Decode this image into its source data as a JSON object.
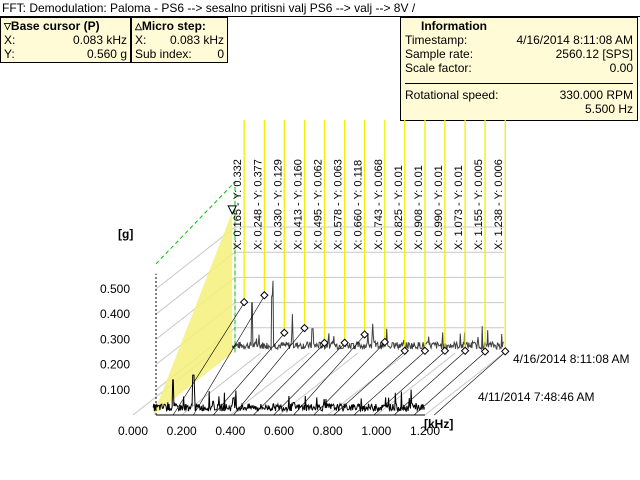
{
  "window": {
    "title": "FFT: Demodulation: Paloma - PS6 --> sesalno pritisni valj PS6 --> valj --> 8V  /"
  },
  "base_cursor": {
    "marker": "▽",
    "title": "Base cursor (P)",
    "x_label": "X:",
    "x_value": "0.083 kHz",
    "y_label": "Y:",
    "y_value": "0.560 g"
  },
  "micro_step": {
    "marker": "△",
    "title": "Micro step:",
    "x_label": "X:",
    "x_value": "0.083 kHz",
    "sub_label": "Sub index:",
    "sub_value": "0"
  },
  "information": {
    "title": "Information",
    "timestamp_label": "Timestamp:",
    "timestamp_value": "4/16/2014 8:11:08 AM",
    "sample_rate_label": "Sample rate:",
    "sample_rate_value": "2560.12 [SPS]",
    "scale_factor_label": "Scale factor:",
    "scale_factor_value": "0.00",
    "rot_speed_label": "Rotational speed:",
    "rot_speed_value": "330.000 RPM",
    "rot_hz_value": "5.500 Hz"
  },
  "colors": {
    "panel_bg": "#fffbd6",
    "cursor_line": "#f0f000",
    "cursor_fill": "#f5f07a",
    "grid": "#c8c8c8",
    "dashed_guide": "#00c000",
    "front_trace": "#000000",
    "back_trace": "#404040"
  },
  "chart_data": {
    "type": "line",
    "subtype": "waterfall-3d",
    "ylabel": "[g]",
    "xlabel": "[kHz]",
    "xlim": [
      0,
      1.2
    ],
    "ylim": [
      0,
      0.6
    ],
    "x_ticks": [
      "0.000",
      "0.200",
      "0.400",
      "0.600",
      "0.800",
      "1.000",
      "1.200"
    ],
    "y_ticks": [
      "0.100",
      "0.200",
      "0.300",
      "0.400",
      "0.500"
    ],
    "series": [
      {
        "name": "4/11/2014 7:48:46 AM"
      },
      {
        "name": "4/16/2014 8:11:08 AM"
      }
    ],
    "harmonic_cursors": [
      {
        "x_label": "X: 0.165 - Y: 0.332",
        "x": 0.165,
        "y": 0.332
      },
      {
        "x_label": "X: 0.248 - Y: 0.377",
        "x": 0.248,
        "y": 0.377
      },
      {
        "x_label": "X: 0.330 - Y: 0.129",
        "x": 0.33,
        "y": 0.129
      },
      {
        "x_label": "X: 0.413 - Y: 0.160",
        "x": 0.413,
        "y": 0.16
      },
      {
        "x_label": "X: 0.495 - Y: 0.062",
        "x": 0.495,
        "y": 0.062
      },
      {
        "x_label": "X: 0.578 - Y: 0.063",
        "x": 0.578,
        "y": 0.063
      },
      {
        "x_label": "X: 0.660 - Y: 0.118",
        "x": 0.66,
        "y": 0.118
      },
      {
        "x_label": "X: 0.743 - Y: 0.068",
        "x": 0.743,
        "y": 0.068
      },
      {
        "x_label": "X: 0.825 - Y: 0.01",
        "x": 0.825,
        "y": 0.01
      },
      {
        "x_label": "X: 0.908 - Y: 0.01",
        "x": 0.908,
        "y": 0.01
      },
      {
        "x_label": "X: 0.990 - Y: 0.01",
        "x": 0.99,
        "y": 0.01
      },
      {
        "x_label": "X: 1.073 - Y: 0.01",
        "x": 1.073,
        "y": 0.01
      },
      {
        "x_label": "X: 1.155 - Y: 0.005",
        "x": 1.155,
        "y": 0.005
      },
      {
        "x_label": "X: 1.238 - Y: 0.006",
        "x": 1.238,
        "y": 0.006
      }
    ],
    "base_cursor": {
      "x": 0.083,
      "y": 0.56
    }
  }
}
